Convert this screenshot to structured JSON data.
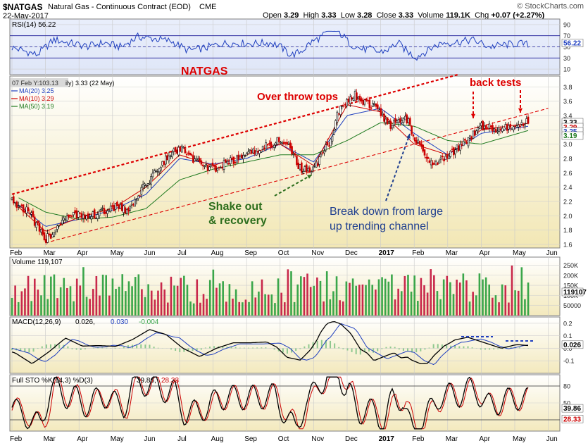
{
  "header": {
    "symbol": "$NATGAS",
    "description": "Natural Gas - Continuous Contract (EOD)",
    "exchange": "CME",
    "date": "22-May-2017",
    "brand": "© StockCharts.com",
    "open_label": "Open",
    "open": "3.29",
    "high_label": "High",
    "high": "3.33",
    "low_label": "Low",
    "low": "3.28",
    "close_label": "Close",
    "close": "3.33",
    "volume_label": "Volume",
    "volume": "119.1K",
    "chg_label": "Chg",
    "chg": "+0.07 (+2.27%)"
  },
  "chart_data": [
    {
      "type": "line",
      "panel": "rsi",
      "legend": "RSI(14) 56.22",
      "value_tag": "56.22",
      "yticks": [
        "90",
        "70",
        "50",
        "30",
        "10"
      ],
      "ylim": [
        0,
        100
      ],
      "levels": [
        70,
        30
      ]
    },
    {
      "type": "line",
      "panel": "price",
      "title": "NATGAS",
      "legend": [
        "07 Feb Y:103.13",
        "ily) 3.33 (22 May)",
        "MA(20) 3.25",
        "MA(10) 3.29",
        "MA(50) 3.19"
      ],
      "value_tags": [
        "3.33",
        "3.29",
        "3.25",
        "3.19"
      ],
      "yticks": [
        "3.8",
        "3.6",
        "3.4",
        "3.2",
        "3.0",
        "2.8",
        "2.6",
        "2.4",
        "2.2",
        "2.0",
        "1.8",
        "1.6"
      ],
      "ylim": [
        1.55,
        3.95
      ],
      "xticks": [
        "Feb",
        "Mar",
        "Apr",
        "May",
        "Jun",
        "Jul",
        "Aug",
        "Sep",
        "Oct",
        "Nov",
        "Dec",
        "2017",
        "Feb",
        "Mar",
        "Apr",
        "May",
        "Jun"
      ],
      "close_series": [
        {
          "m": 0,
          "v": 2.22
        },
        {
          "m": 0.5,
          "v": 2.05
        },
        {
          "m": 1,
          "v": 1.66
        },
        {
          "m": 1.5,
          "v": 1.92
        },
        {
          "m": 2,
          "v": 2.03
        },
        {
          "m": 2.5,
          "v": 2.0
        },
        {
          "m": 3,
          "v": 2.13
        },
        {
          "m": 3.5,
          "v": 2.07
        },
        {
          "m": 4,
          "v": 2.45
        },
        {
          "m": 4.5,
          "v": 2.75
        },
        {
          "m": 5,
          "v": 2.95
        },
        {
          "m": 5.5,
          "v": 2.75
        },
        {
          "m": 6,
          "v": 2.65
        },
        {
          "m": 6.5,
          "v": 2.75
        },
        {
          "m": 7,
          "v": 2.85
        },
        {
          "m": 7.5,
          "v": 2.95
        },
        {
          "m": 8,
          "v": 3.08
        },
        {
          "m": 8.3,
          "v": 2.95
        },
        {
          "m": 8.6,
          "v": 2.65
        },
        {
          "m": 9,
          "v": 2.65
        },
        {
          "m": 9.5,
          "v": 3.05
        },
        {
          "m": 9.8,
          "v": 3.55
        },
        {
          "m": 10.2,
          "v": 3.7
        },
        {
          "m": 10.5,
          "v": 3.6
        },
        {
          "m": 11,
          "v": 3.45
        },
        {
          "m": 11.2,
          "v": 3.25
        },
        {
          "m": 11.5,
          "v": 3.3
        },
        {
          "m": 11.8,
          "v": 3.35
        },
        {
          "m": 12,
          "v": 3.1
        },
        {
          "m": 12.3,
          "v": 2.85
        },
        {
          "m": 12.6,
          "v": 2.75
        },
        {
          "m": 13,
          "v": 2.85
        },
        {
          "m": 13.5,
          "v": 3.0
        },
        {
          "m": 14,
          "v": 3.25
        },
        {
          "m": 14.5,
          "v": 3.2
        },
        {
          "m": 15,
          "v": 3.25
        },
        {
          "m": 15.4,
          "v": 3.33
        }
      ],
      "ma_series": [
        {
          "name": "MA(20)",
          "color": "#1f3fbf",
          "values": [
            {
              "m": 0.2,
              "v": 2.15
            },
            {
              "m": 1,
              "v": 1.85
            },
            {
              "m": 2,
              "v": 1.95
            },
            {
              "m": 3,
              "v": 2.08
            },
            {
              "m": 4,
              "v": 2.3
            },
            {
              "m": 5,
              "v": 2.8
            },
            {
              "m": 6,
              "v": 2.72
            },
            {
              "m": 7,
              "v": 2.8
            },
            {
              "m": 8,
              "v": 3.0
            },
            {
              "m": 9,
              "v": 2.75
            },
            {
              "m": 10,
              "v": 3.4
            },
            {
              "m": 11,
              "v": 3.5
            },
            {
              "m": 12,
              "v": 3.15
            },
            {
              "m": 13,
              "v": 2.85
            },
            {
              "m": 14,
              "v": 3.15
            },
            {
              "m": 15.4,
              "v": 3.25
            }
          ]
        },
        {
          "name": "MA(10)",
          "color": "#cc0000",
          "values": [
            {
              "m": 0.2,
              "v": 2.12
            },
            {
              "m": 1,
              "v": 1.78
            },
            {
              "m": 2,
              "v": 1.98
            },
            {
              "m": 3,
              "v": 2.1
            },
            {
              "m": 4,
              "v": 2.4
            },
            {
              "m": 5,
              "v": 2.85
            },
            {
              "m": 6,
              "v": 2.7
            },
            {
              "m": 7,
              "v": 2.85
            },
            {
              "m": 8,
              "v": 3.0
            },
            {
              "m": 9,
              "v": 2.7
            },
            {
              "m": 10,
              "v": 3.55
            },
            {
              "m": 11,
              "v": 3.45
            },
            {
              "m": 12,
              "v": 3.0
            },
            {
              "m": 13,
              "v": 2.85
            },
            {
              "m": 14,
              "v": 3.2
            },
            {
              "m": 15.4,
              "v": 3.29
            }
          ]
        },
        {
          "name": "MA(50)",
          "color": "#1f7a1f",
          "values": [
            {
              "m": 0.2,
              "v": 2.25
            },
            {
              "m": 1,
              "v": 2.05
            },
            {
              "m": 2,
              "v": 1.95
            },
            {
              "m": 3,
              "v": 1.98
            },
            {
              "m": 4,
              "v": 2.1
            },
            {
              "m": 5,
              "v": 2.5
            },
            {
              "m": 6,
              "v": 2.65
            },
            {
              "m": 7,
              "v": 2.75
            },
            {
              "m": 8,
              "v": 2.85
            },
            {
              "m": 9,
              "v": 2.85
            },
            {
              "m": 10,
              "v": 3.05
            },
            {
              "m": 11,
              "v": 3.3
            },
            {
              "m": 12,
              "v": 3.25
            },
            {
              "m": 13,
              "v": 3.05
            },
            {
              "m": 14,
              "v": 3.0
            },
            {
              "m": 15.4,
              "v": 3.19
            }
          ]
        }
      ],
      "trendlines": [
        {
          "name": "upper-channel",
          "color": "#dd0000",
          "from": {
            "m": 0,
            "v": 2.3
          },
          "to": {
            "m": 13.3,
            "v": 3.97
          }
        },
        {
          "name": "lower-channel",
          "color": "#dd0000",
          "from": {
            "m": 1,
            "v": 1.62
          },
          "to": {
            "m": 16,
            "v": 3.5
          }
        }
      ],
      "annotations": [
        {
          "text": "NATGAS",
          "color": "#dd0000"
        },
        {
          "text": "Over throw tops",
          "color": "#dd0000"
        },
        {
          "text": "back tests",
          "color": "#dd0000"
        },
        {
          "text": "Shake out",
          "color": "#2d6e1d"
        },
        {
          "text": "& recovery",
          "color": "#2d6e1d"
        },
        {
          "text": "Break down from large",
          "color": "#1f3f8f"
        },
        {
          "text": "up trending channel",
          "color": "#1f3f8f"
        }
      ]
    },
    {
      "type": "bar",
      "panel": "volume",
      "legend": "Volume 119,107",
      "value_tag": "119107",
      "yticks": [
        "250K",
        "200K",
        "150K",
        "100K",
        "50000"
      ],
      "ylim": [
        0,
        290000
      ]
    },
    {
      "type": "line",
      "panel": "macd",
      "legend_prefix": "MACD(12,26,9)",
      "legend_values": [
        "0.026,",
        "0.030",
        "-0.004"
      ],
      "value_tag": "0.026",
      "yticks": [
        "0.2",
        "0.1",
        "0.0",
        "-0.1"
      ],
      "ylim": [
        -0.2,
        0.25
      ]
    },
    {
      "type": "line",
      "panel": "stochastic",
      "legend_prefix": "Full STO %K(14,3) %D(3)",
      "legend_values": [
        "39.86,",
        "28.33"
      ],
      "value_tags": [
        "39.86",
        "28.33"
      ],
      "yticks": [
        "80",
        "50",
        "20"
      ],
      "ylim": [
        0,
        100
      ],
      "xticks": [
        "Feb",
        "Mar",
        "Apr",
        "May",
        "Jun",
        "Jul",
        "Aug",
        "Sep",
        "Oct",
        "Nov",
        "Dec",
        "2017",
        "Feb",
        "Mar",
        "Apr",
        "May",
        "Jun"
      ]
    }
  ]
}
